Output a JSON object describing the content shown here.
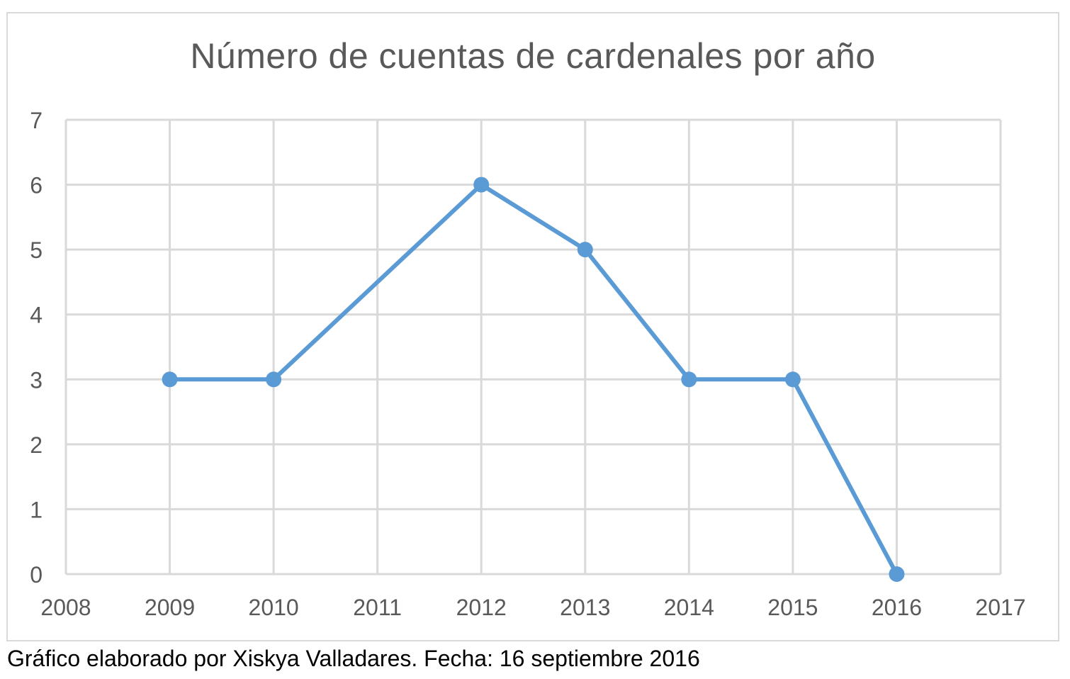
{
  "caption": "Gráfico elaborado por Xiskya Valladares. Fecha: 16 septiembre 2016",
  "chart_data": {
    "type": "scatter",
    "title": "Número de cuentas de cardenales por año",
    "xlabel": "",
    "ylabel": "",
    "xlim": [
      2008,
      2017
    ],
    "ylim": [
      0,
      7
    ],
    "x_ticks": [
      2008,
      2009,
      2010,
      2011,
      2012,
      2013,
      2014,
      2015,
      2016,
      2017
    ],
    "y_ticks": [
      0,
      1,
      2,
      3,
      4,
      5,
      6,
      7
    ],
    "grid": true,
    "legend": "none",
    "series": [
      {
        "name": "",
        "color": "#5b9bd5",
        "mode": "lines+markers",
        "x": [
          2009,
          2010,
          2012,
          2013,
          2014,
          2015,
          2016
        ],
        "y": [
          3,
          3,
          6,
          5,
          3,
          3,
          0
        ]
      }
    ]
  }
}
